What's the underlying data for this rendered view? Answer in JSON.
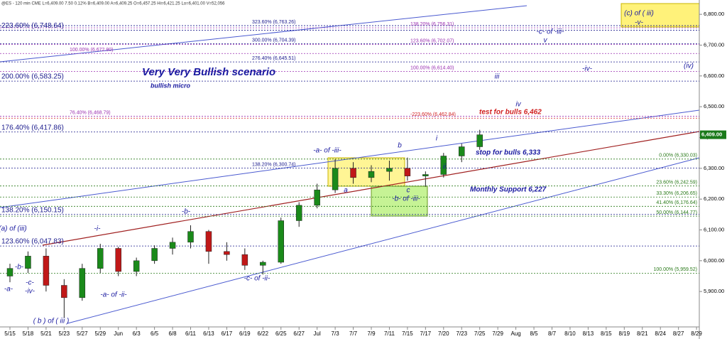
{
  "chart_data": {
    "type": "candlestick",
    "title": "@ES - 120 min CME  L=6,409.00  7.50  0.12%  B=6,409.00  A=6,409.25  O=6,457.25  Hi=6,421.25  Lo=6,401.00  V=52,056",
    "categories": [
      "5/15",
      "5/18",
      "5/21",
      "5/23",
      "5/27",
      "5/29",
      "Jun",
      "6/3",
      "6/5",
      "6/8",
      "6/11",
      "6/13",
      "6/17",
      "6/19",
      "6/22",
      "6/25",
      "6/27",
      "Jul",
      "7/3",
      "7/7",
      "7/9",
      "7/11",
      "7/15",
      "7/17",
      "7/20",
      "7/23",
      "7/25",
      "7/29",
      "Aug",
      "8/5",
      "8/7",
      "8/10",
      "8/13",
      "8/15",
      "8/19",
      "8/21",
      "8/24",
      "8/27",
      "8/29"
    ],
    "open": [
      5950,
      5975,
      6015,
      5920,
      5880,
      5975,
      6040,
      5965,
      6000,
      6040,
      6060,
      6095,
      6030,
      6020,
      5985,
      5995,
      6130,
      6180,
      6230,
      6300,
      6270,
      6290,
      6300,
      6275,
      6280,
      6340,
      6370,
      null,
      null,
      null,
      null,
      null,
      null,
      null,
      null,
      null,
      null,
      null,
      null
    ],
    "high": [
      5990,
      6030,
      6040,
      5940,
      5990,
      6055,
      6045,
      6010,
      6050,
      6075,
      6115,
      6100,
      6060,
      6040,
      6000,
      6140,
      6190,
      6250,
      6330,
      6320,
      6310,
      6325,
      6335,
      6290,
      6350,
      6380,
      6425,
      null,
      null,
      null,
      null,
      null,
      null,
      null,
      null,
      null,
      null,
      null,
      null
    ],
    "low": [
      5930,
      5960,
      5900,
      5815,
      5870,
      5960,
      5950,
      5950,
      5990,
      6020,
      6040,
      5990,
      6000,
      5970,
      5955,
      5990,
      6110,
      6170,
      6220,
      6250,
      6255,
      6260,
      6260,
      6240,
      6270,
      6320,
      6360,
      null,
      null,
      null,
      null,
      null,
      null,
      null,
      null,
      null,
      null,
      null,
      null
    ],
    "close": [
      5975,
      6015,
      5920,
      5880,
      5975,
      6040,
      5965,
      6000,
      6040,
      6060,
      6095,
      6030,
      6020,
      5985,
      5995,
      6130,
      6180,
      6230,
      6300,
      6270,
      6290,
      6300,
      6275,
      6280,
      6340,
      6370,
      6409,
      null,
      null,
      null,
      null,
      null,
      null,
      null,
      null,
      null,
      null,
      null,
      null
    ],
    "up_color": "#1a8a1a",
    "down_color": "#c01818",
    "ylim": [
      5785,
      6835
    ],
    "yticks": [
      {
        "value": 5900,
        "label": "5,900.00"
      },
      {
        "value": 6000,
        "label": "6,000.00"
      },
      {
        "value": 6100,
        "label": "6,100.00"
      },
      {
        "value": 6200,
        "label": "6,200.00"
      },
      {
        "value": 6300,
        "label": "6,300.00"
      },
      {
        "value": 6400,
        "label": "6,400.00"
      },
      {
        "value": 6500,
        "label": "6,500.00"
      },
      {
        "value": 6600,
        "label": "6,600.00"
      },
      {
        "value": 6700,
        "label": "6,700.00"
      },
      {
        "value": 6800,
        "label": "6,800.00"
      }
    ],
    "last_value": {
      "value": 6409,
      "label": "6,409.00"
    },
    "levels": [
      {
        "value": 6748.64,
        "label": "223.60% (6,748.64)",
        "color": "#1a1a8c"
      },
      {
        "value": 6583.25,
        "label": "200.00% (6,583.25)",
        "color": "#1a1a8c"
      },
      {
        "value": 6417.86,
        "label": "176.40% (6,417.86)",
        "color": "#1a1a8c"
      },
      {
        "value": 6150.15,
        "label": "138.20% (6,150.15)",
        "color": "#1a1a8c"
      },
      {
        "value": 6047.83,
        "label": "123.60% (6,047.83)",
        "color": "#1a1a8c"
      },
      {
        "value": 6672.8,
        "label": "100.00% (6,672.80)",
        "color": "#9a2fb0"
      },
      {
        "value": 6468.79,
        "label": "76.40% (6,468.79)",
        "color": "#9a2fb0"
      },
      {
        "value": 6763.26,
        "label": "323.60% (6,763.26)",
        "color": "#1a1a8c"
      },
      {
        "value": 6704.39,
        "label": "300.00% (6,704.39)",
        "color": "#1a1a8c"
      },
      {
        "value": 6645.51,
        "label": "276.40% (6,645.51)",
        "color": "#1a1a8c"
      },
      {
        "value": 6300.74,
        "label": "138.20% (6,300.74)",
        "color": "#1a1a8c"
      },
      {
        "value": 6756.31,
        "label": "138.20% (6,756.31)",
        "color": "#9a2fb0"
      },
      {
        "value": 6702.07,
        "label": "123.60% (6,702.07)",
        "color": "#9a2fb0"
      },
      {
        "value": 6614.4,
        "label": "100.00% (6,614.40)",
        "color": "#9a2fb0"
      },
      {
        "value": 6462.84,
        "label": "-223.60% (6,462.84)",
        "color": "#d02020"
      },
      {
        "value": 6330.03,
        "label": "0.00% (6,330.03)",
        "color": "#2a7a1a"
      },
      {
        "value": 6242.59,
        "label": "23.60% (6,242.59)",
        "color": "#2a7a1a"
      },
      {
        "value": 6206.65,
        "label": "33.30% (6,206.65)",
        "color": "#2a7a1a"
      },
      {
        "value": 6176.64,
        "label": "41.40% (6,176.64)",
        "color": "#2a7a1a"
      },
      {
        "value": 6144.77,
        "label": "50.00% (6,144.77)",
        "color": "#2a7a1a"
      },
      {
        "value": 5959.52,
        "label": "100.00% (5,959.52)",
        "color": "#2a7a1a"
      }
    ],
    "annotations": [
      "Very Very Bullish scenario",
      "bullish micro",
      "test for bulls 6,462",
      "stop for bulls 6,333",
      "Monthly Support 6,227"
    ],
    "wave_labels": [
      "-a-",
      "-b-",
      "-c-",
      "-iv-",
      "(a) of (iii)",
      "( b ) of ( iii )",
      "-i-",
      "-a- of -ii-",
      "-b-",
      "-c- of -ii-",
      "-a- of -iii-",
      "a",
      "b",
      "c",
      "-b- of -iii-",
      "i",
      "ii",
      "iii",
      "iv",
      "-iv-",
      "(iv)",
      "-c- of -iii-",
      "v",
      "(c) of ( iii)",
      "-v-"
    ]
  }
}
